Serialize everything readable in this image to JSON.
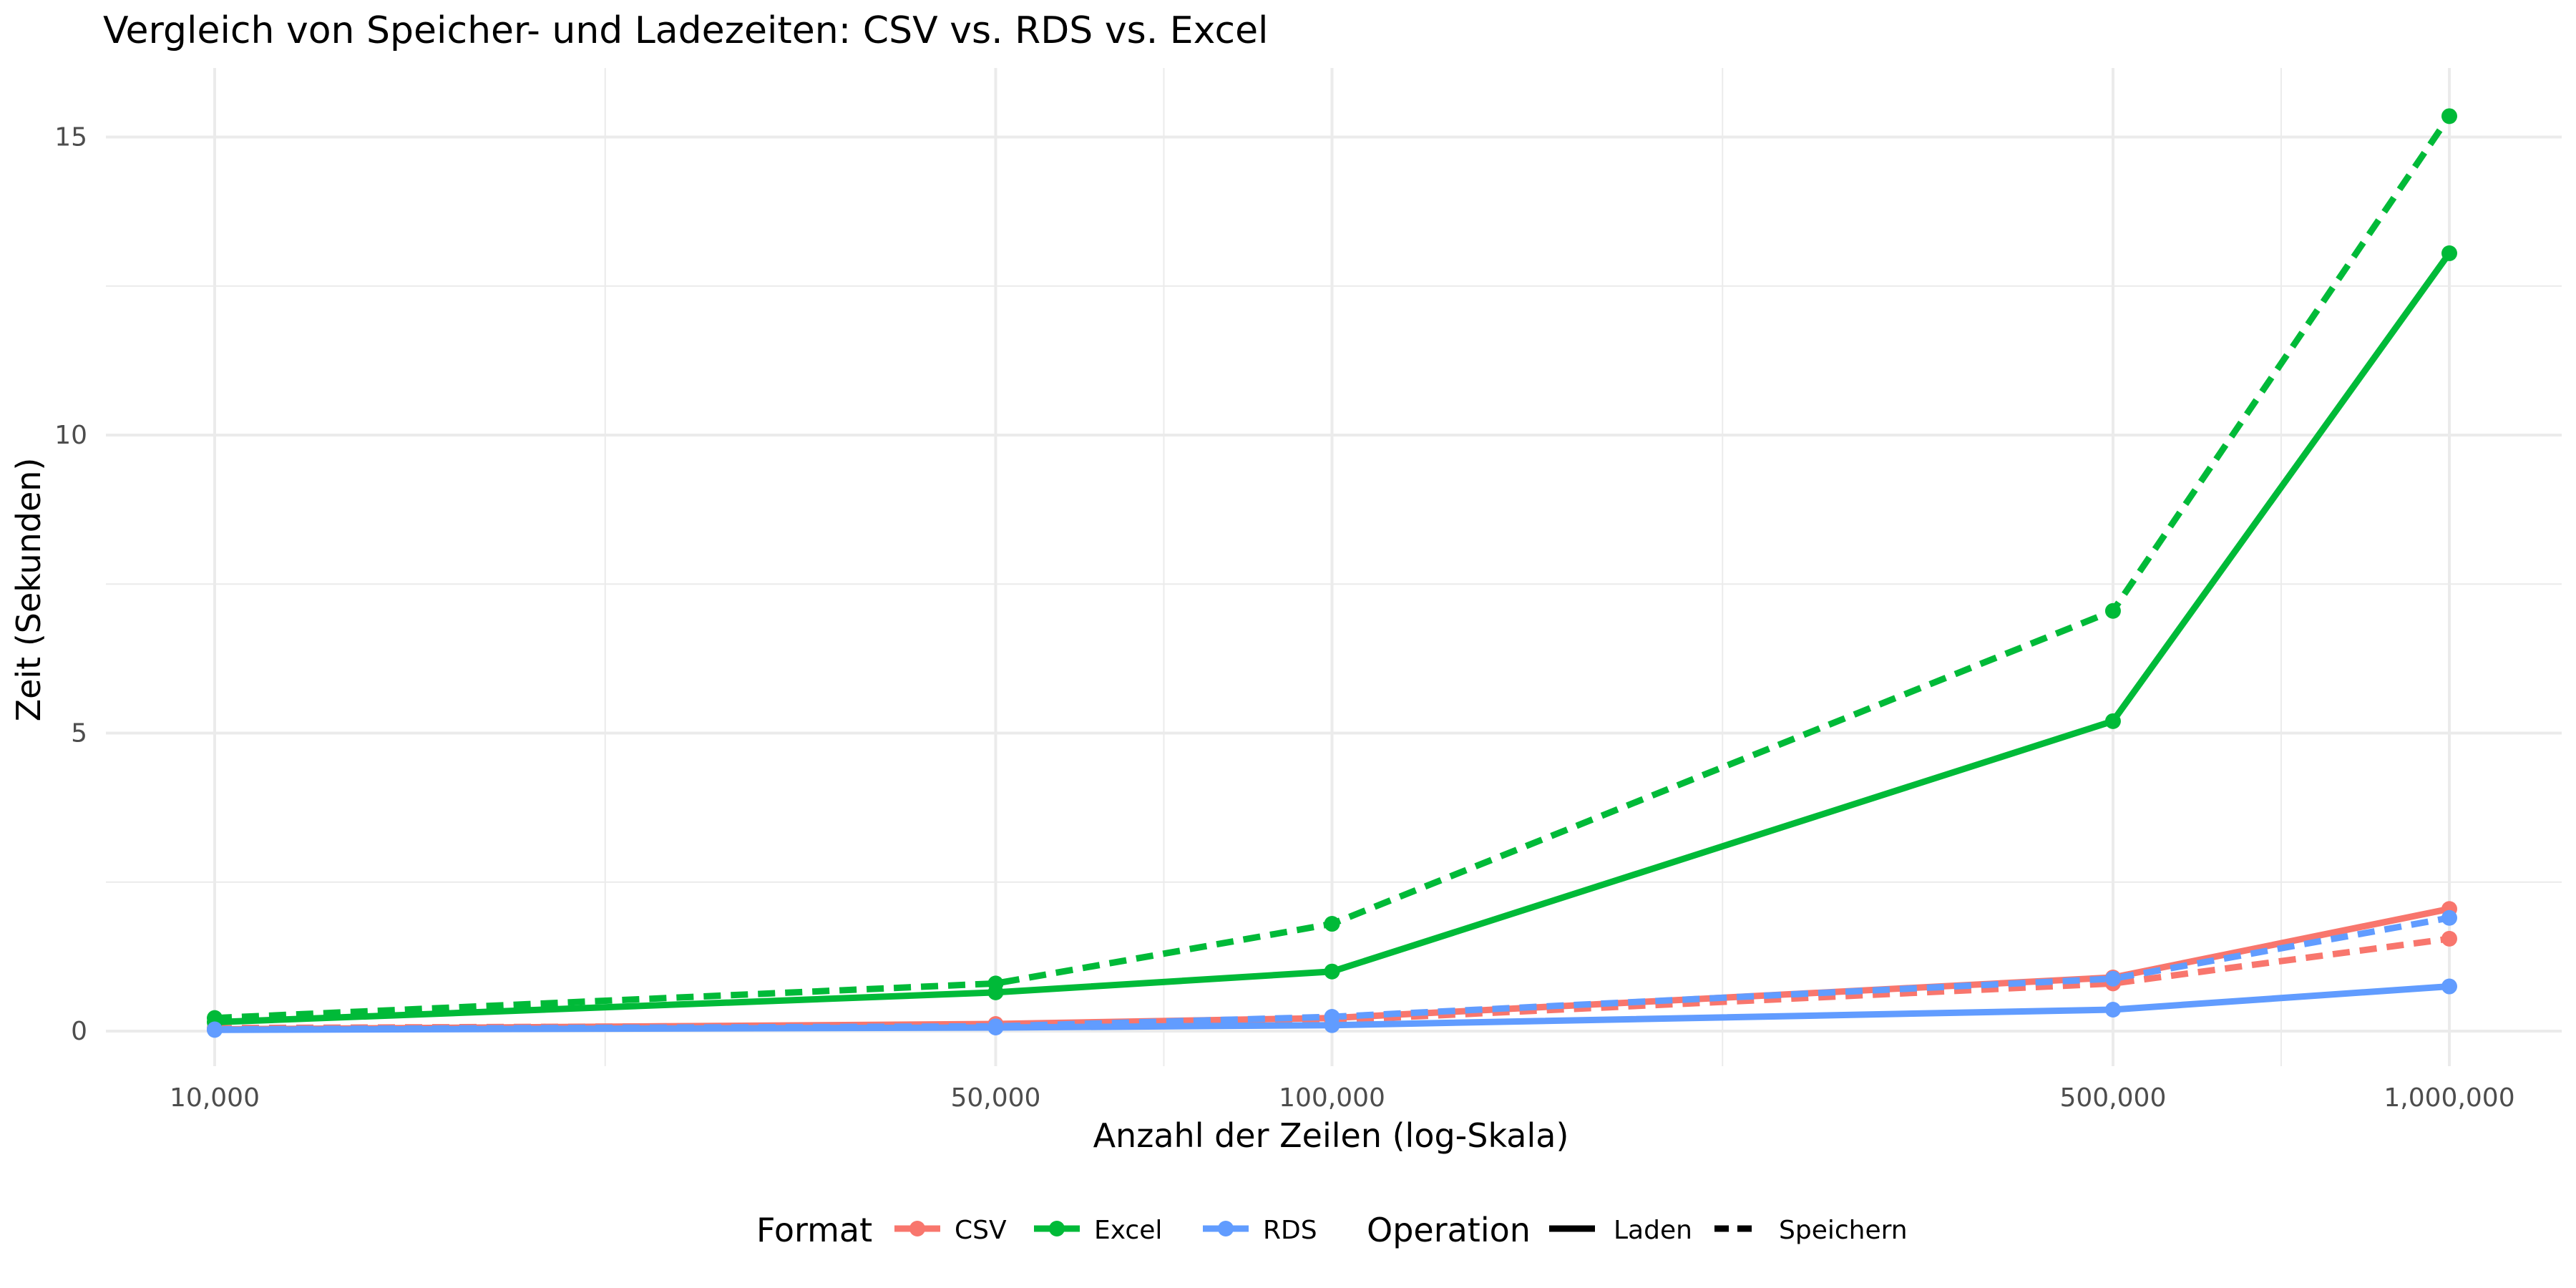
{
  "chart_data": {
    "type": "line",
    "title": "Vergleich von Speicher- und Ladezeiten: CSV vs. RDS vs. Excel",
    "xlabel": "Anzahl der Zeilen (log-Skala)",
    "ylabel": "Zeit (Sekunden)",
    "x_scale": "log10",
    "x": [
      10000,
      50000,
      100000,
      500000,
      1000000
    ],
    "x_tick_values": [
      10000,
      50000,
      100000,
      500000,
      1000000
    ],
    "x_tick_labels": [
      "10,000",
      "50,000",
      "100,000",
      "500,000",
      "1,000,000"
    ],
    "y_tick_values": [
      0,
      5,
      10,
      15
    ],
    "y_tick_labels": [
      "0",
      "5",
      "10",
      "15"
    ],
    "ylim": [
      -0.6,
      16.1
    ],
    "grid": true,
    "legend_position": "bottom",
    "legend": {
      "format_title": "Format",
      "operation_title": "Operation",
      "formats": [
        {
          "name": "CSV",
          "color": "#F8766D"
        },
        {
          "name": "Excel",
          "color": "#00BA38"
        },
        {
          "name": "RDS",
          "color": "#619CFF"
        }
      ],
      "operations": [
        {
          "name": "Laden",
          "dash": "solid"
        },
        {
          "name": "Speichern",
          "dash": "dashed"
        }
      ]
    },
    "series": [
      {
        "format": "CSV",
        "operation": "Laden",
        "values": [
          0.03,
          0.12,
          0.22,
          0.9,
          2.05
        ]
      },
      {
        "format": "CSV",
        "operation": "Speichern",
        "values": [
          0.05,
          0.1,
          0.18,
          0.8,
          1.55
        ]
      },
      {
        "format": "Excel",
        "operation": "Laden",
        "values": [
          0.15,
          0.65,
          1.0,
          5.2,
          13.05
        ]
      },
      {
        "format": "Excel",
        "operation": "Speichern",
        "values": [
          0.22,
          0.8,
          1.8,
          7.05,
          15.35
        ]
      },
      {
        "format": "RDS",
        "operation": "Laden",
        "values": [
          0.02,
          0.06,
          0.1,
          0.36,
          0.75
        ]
      },
      {
        "format": "RDS",
        "operation": "Speichern",
        "values": [
          0.03,
          0.08,
          0.24,
          0.88,
          1.9
        ]
      }
    ]
  }
}
